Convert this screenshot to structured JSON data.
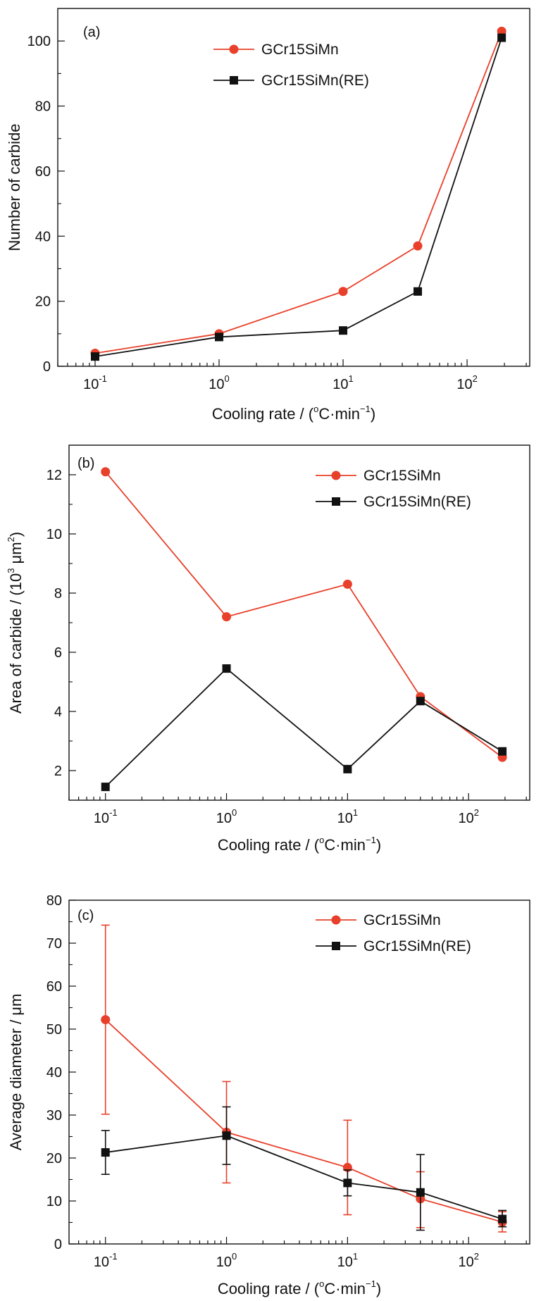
{
  "colors": {
    "red": "#e8402a",
    "black": "#111111"
  },
  "chart_data": [
    {
      "type": "line",
      "panel": "(a)",
      "x_scale": "log",
      "xlim": [
        0.05,
        320
      ],
      "ylim": [
        0,
        110
      ],
      "xlabel": {
        "prefix": "Cooling rate / (",
        "deg": "o",
        "mid": "C·min",
        "exp": "−1",
        "suffix": ")"
      },
      "ylabel": "Number of carbide",
      "x_ticks": [
        {
          "base": "10",
          "exp": "-1"
        },
        {
          "base": "10",
          "exp": "0"
        },
        {
          "base": "10",
          "exp": "1"
        },
        {
          "base": "10",
          "exp": "2"
        }
      ],
      "y_ticks": [
        "0",
        "20",
        "40",
        "60",
        "80",
        "100"
      ],
      "legend_position": "top-center",
      "x": [
        0.1,
        1,
        10,
        40,
        190
      ],
      "series": [
        {
          "name": "GCr15SiMn",
          "color": "red",
          "marker": "circle",
          "values": [
            4,
            10,
            23,
            37,
            103
          ]
        },
        {
          "name": "GCr15SiMn(RE)",
          "color": "black",
          "marker": "square",
          "values": [
            3,
            9,
            11,
            23,
            101
          ]
        }
      ]
    },
    {
      "type": "line",
      "panel": "(b)",
      "x_scale": "log",
      "xlim": [
        0.05,
        320
      ],
      "ylim": [
        1,
        13
      ],
      "xlabel": {
        "prefix": "Cooling rate / (",
        "deg": "o",
        "mid": "C·min",
        "exp": "−1",
        "suffix": ")"
      },
      "ylabel": {
        "prefix": "Area of  carbide / (10",
        "exp": "3",
        "mid": " μm",
        "exp2": "2",
        "suffix": ")"
      },
      "x_ticks": [
        {
          "base": "10",
          "exp": "-1"
        },
        {
          "base": "10",
          "exp": "0"
        },
        {
          "base": "10",
          "exp": "1"
        },
        {
          "base": "10",
          "exp": "2"
        }
      ],
      "y_ticks": [
        "2",
        "4",
        "6",
        "8",
        "10",
        "12"
      ],
      "legend_position": "top-right",
      "x": [
        0.1,
        1,
        10,
        40,
        190
      ],
      "series": [
        {
          "name": "GCr15SiMn",
          "color": "red",
          "marker": "circle",
          "values": [
            12.1,
            7.2,
            8.3,
            4.5,
            2.45
          ]
        },
        {
          "name": "GCr15SiMn(RE)",
          "color": "black",
          "marker": "square",
          "values": [
            1.45,
            5.45,
            2.05,
            4.35,
            2.65
          ]
        }
      ]
    },
    {
      "type": "line",
      "panel": "(c)",
      "x_scale": "log",
      "xlim": [
        0.05,
        320
      ],
      "ylim": [
        0,
        80
      ],
      "xlabel": {
        "prefix": "Cooling rate / (",
        "deg": "o",
        "mid": "C·min",
        "exp": "−1",
        "suffix": ")"
      },
      "ylabel": "Average diameter / μm",
      "x_ticks": [
        {
          "base": "10",
          "exp": "-1"
        },
        {
          "base": "10",
          "exp": "0"
        },
        {
          "base": "10",
          "exp": "1"
        },
        {
          "base": "10",
          "exp": "2"
        }
      ],
      "y_ticks": [
        "0",
        "10",
        "20",
        "30",
        "40",
        "50",
        "60",
        "70",
        "80"
      ],
      "legend_position": "top-right",
      "x": [
        0.1,
        1,
        10,
        40,
        190
      ],
      "series": [
        {
          "name": "GCr15SiMn",
          "color": "red",
          "marker": "circle",
          "values": [
            52.2,
            26.0,
            17.8,
            10.5,
            5.1
          ],
          "error_low": [
            30.2,
            14.2,
            6.8,
            3.8,
            2.8
          ],
          "error_high": [
            74.2,
            37.8,
            28.8,
            16.8,
            7.5
          ]
        },
        {
          "name": "GCr15SiMn(RE)",
          "color": "black",
          "marker": "square",
          "values": [
            21.3,
            25.2,
            14.2,
            12.0,
            5.8
          ],
          "error_low": [
            16.2,
            18.5,
            11.2,
            3.2,
            4.0
          ],
          "error_high": [
            26.4,
            31.9,
            17.2,
            20.8,
            7.8
          ]
        }
      ]
    }
  ]
}
